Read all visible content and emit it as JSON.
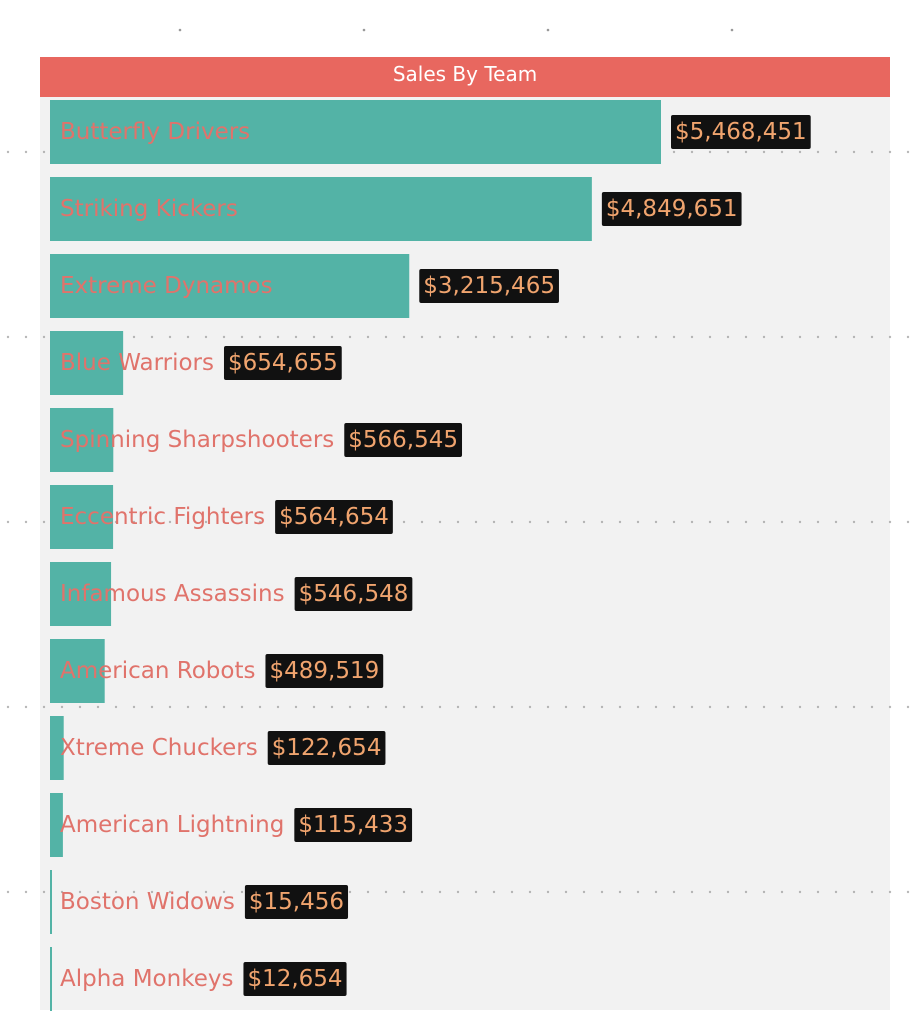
{
  "chart_data": {
    "type": "bar",
    "orientation": "horizontal",
    "title": "Sales By Team",
    "categories": [
      "Butterfly Drivers",
      "Striking Kickers",
      "Extreme Dynamos",
      "Blue Warriors",
      "Spinning Sharpshooters",
      "Eccentric Fighters",
      "Infamous Assassins",
      "American Robots",
      "Xtreme Chuckers",
      "American Lightning",
      "Boston Widows",
      "Alpha Monkeys"
    ],
    "values": [
      5468451,
      4849651,
      3215465,
      654655,
      566545,
      564654,
      546548,
      489519,
      122654,
      115433,
      15456,
      12654
    ],
    "value_labels": [
      "$5,468,451",
      "$4,849,651",
      "$3,215,465",
      "$654,655",
      "$566,545",
      "$564,654",
      "$546,548",
      "$489,519",
      "$122,654",
      "$115,433",
      "$15,456",
      "$12,654"
    ],
    "color": "#53b3a6",
    "title_color": "#e8675f",
    "category_label_color": "#e0736b",
    "value_label_color": "#f0a46e"
  }
}
